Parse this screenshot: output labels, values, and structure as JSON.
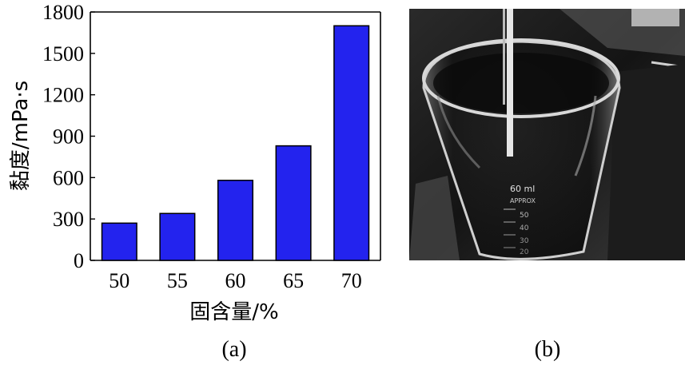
{
  "chart_data": {
    "type": "bar",
    "categories": [
      "50",
      "55",
      "60",
      "65",
      "70"
    ],
    "values": [
      270,
      340,
      580,
      830,
      1700
    ],
    "ylabel": "黏度/mPa·s",
    "xlabel": "固含量/%",
    "ylim": [
      0,
      1800
    ],
    "yticks": [
      0,
      300,
      600,
      900,
      1200,
      1500,
      1800
    ],
    "bar_color": "#2323ee",
    "grid": false
  },
  "panels": {
    "a_label": "(a)",
    "b_label": "(b)"
  },
  "photo": {
    "beaker_marking_1": "60 ml",
    "beaker_marking_2": "APPROX",
    "beaker_marking_3": "50",
    "beaker_marking_4": "40",
    "beaker_marking_5": "30",
    "beaker_marking_6": "20"
  }
}
